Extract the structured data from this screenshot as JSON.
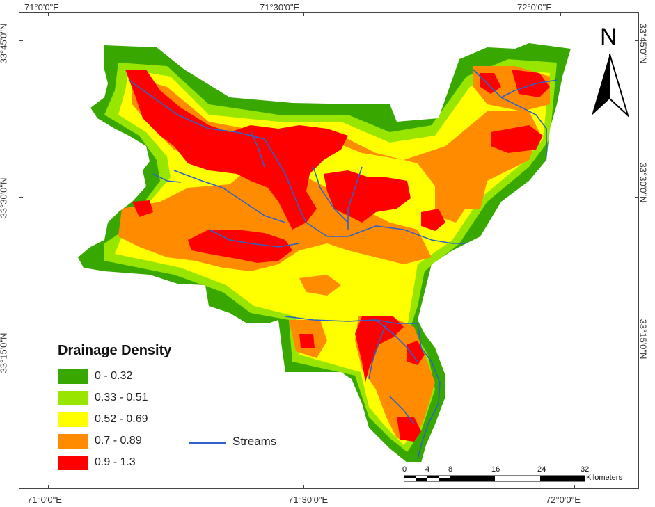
{
  "map": {
    "top_labels": [
      "71°0'0\"E",
      "71°30'0\"E",
      "72°0'0\"E"
    ],
    "bottom_labels": [
      "71°0'0\"E",
      "71°30'0\"E",
      "72°0'0\"E"
    ],
    "left_labels": [
      "33°45'0\"N",
      "33°30'0\"N",
      "33°15'0\"N"
    ],
    "right_labels": [
      "33°45'0\"N",
      "33°30'0\"N",
      "33°15'0\"N"
    ]
  },
  "legend": {
    "title": "Drainage Density",
    "classes": [
      {
        "label": "0 - 0.32",
        "color": "#38a800"
      },
      {
        "label": "0.33 - 0.51",
        "color": "#98e600"
      },
      {
        "label": "0.52 - 0.69",
        "color": "#ffff00"
      },
      {
        "label": "0.7 - 0.89",
        "color": "#ff8c00"
      },
      {
        "label": "0.9 - 1.3",
        "color": "#ff0000"
      }
    ],
    "streams_label": "Streams",
    "streams_color": "#2e62c8"
  },
  "north_arrow": {
    "letter": "N"
  },
  "scale_bar": {
    "ticks": [
      "0",
      "4",
      "8",
      "16",
      "24",
      "32"
    ],
    "unit": "Kilometers"
  }
}
